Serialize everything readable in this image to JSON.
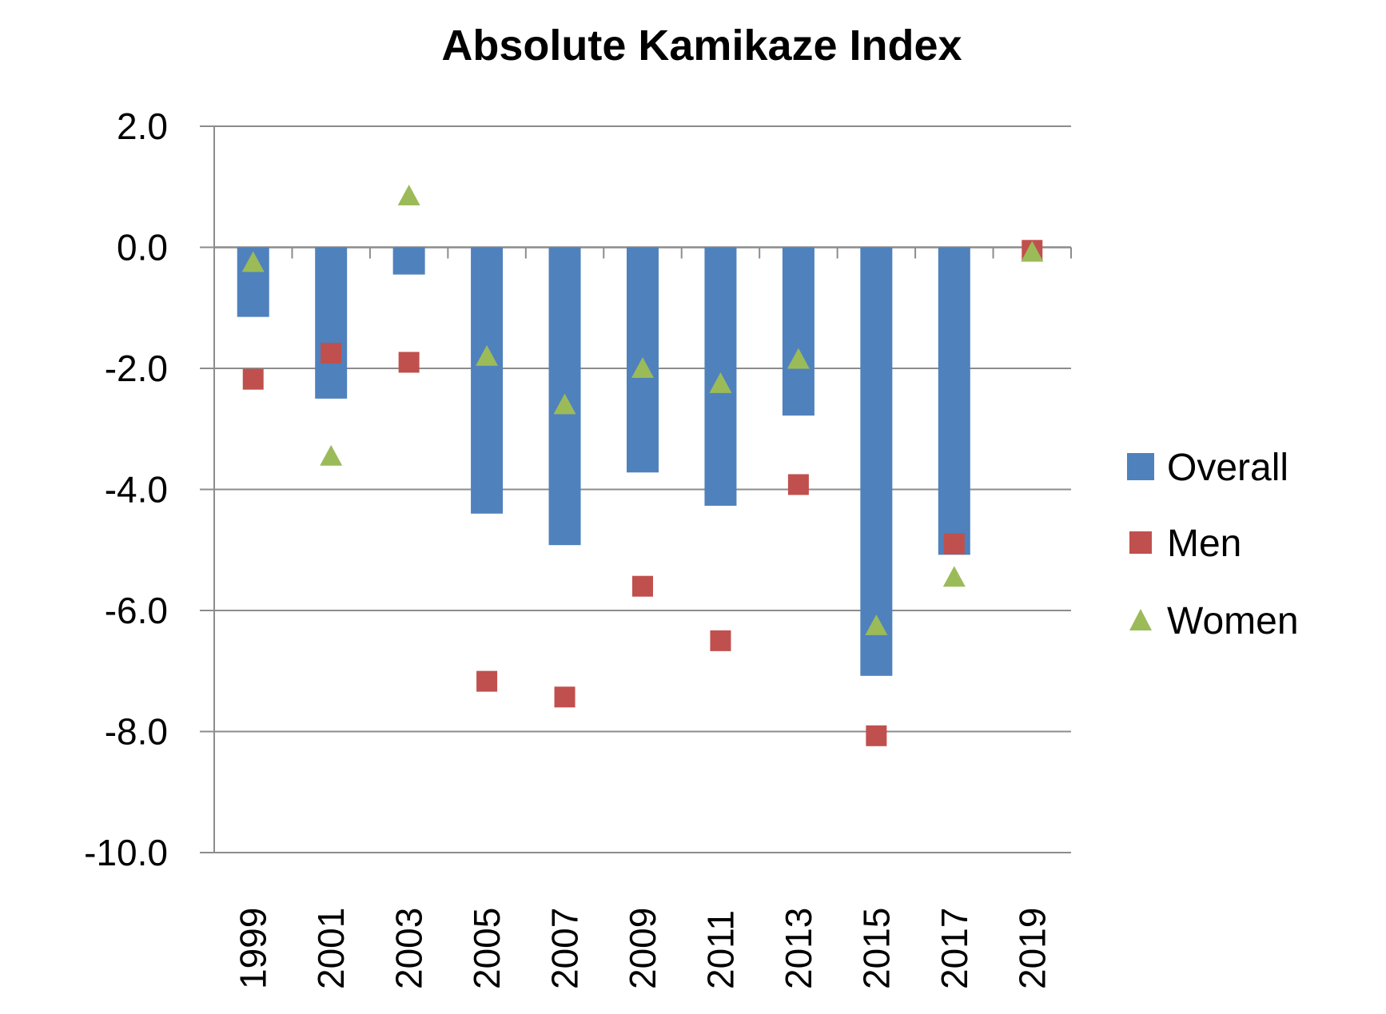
{
  "chart_data": {
    "type": "bar",
    "title": "Absolute Kamikaze Index",
    "xlabel": "",
    "ylabel": "",
    "categories": [
      "1999",
      "2001",
      "2003",
      "2005",
      "2007",
      "2009",
      "2011",
      "2013",
      "2015",
      "2017",
      "2019"
    ],
    "ylim": [
      -10,
      2
    ],
    "yticks": [
      2,
      0,
      -2,
      -4,
      -6,
      -8,
      -10
    ],
    "ytick_labels": [
      "2.0",
      "0.0",
      "-2.0",
      "-4.0",
      "-6.0",
      "-8.0",
      "-10.0"
    ],
    "grid": true,
    "legend_position": "right",
    "series": [
      {
        "name": "Overall",
        "type": "bar",
        "marker": "square",
        "color": "#4F81BD",
        "values": [
          -1.15,
          -2.5,
          -0.45,
          -4.4,
          -4.92,
          -3.72,
          -4.27,
          -2.78,
          -7.08,
          -5.08,
          0
        ]
      },
      {
        "name": "Men",
        "type": "scatter",
        "marker": "square",
        "color": "#C0504D",
        "values": [
          -2.18,
          -1.75,
          -1.9,
          -7.17,
          -7.43,
          -5.6,
          -6.5,
          -3.92,
          -8.07,
          -4.9,
          -0.05
        ]
      },
      {
        "name": "Women",
        "type": "scatter",
        "marker": "triangle",
        "color": "#9BBB59",
        "values": [
          -0.25,
          -3.45,
          0.85,
          -1.8,
          -2.6,
          -2.0,
          -2.25,
          -1.85,
          -6.25,
          -5.45,
          -0.08
        ]
      }
    ]
  }
}
